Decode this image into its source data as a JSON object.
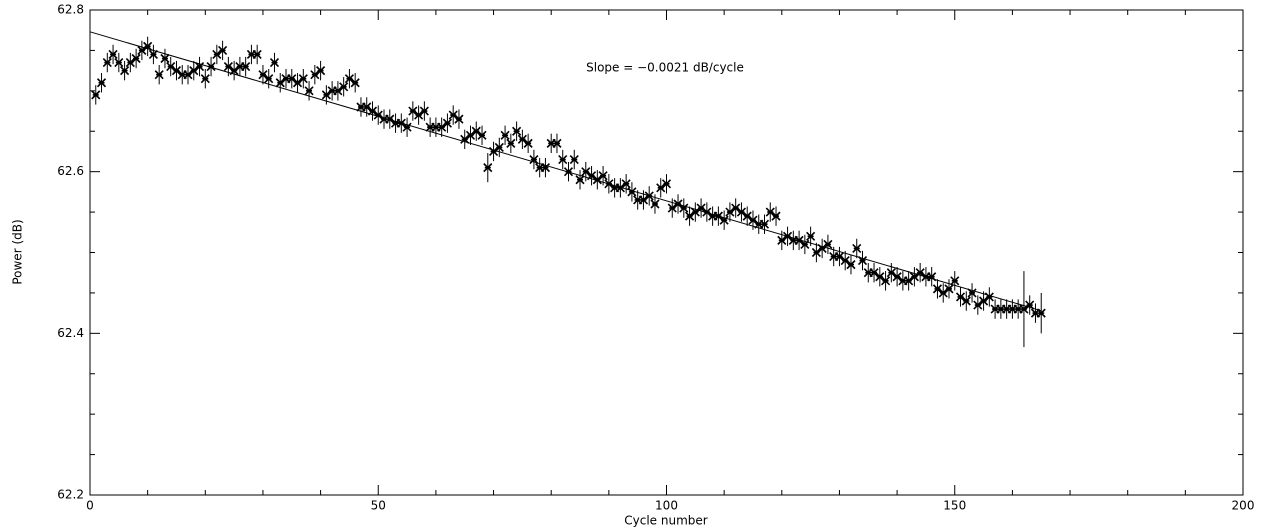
{
  "chart_data": {
    "type": "scatter",
    "xlabel": "Cycle number",
    "ylabel": "Power   (dB)",
    "annotation": "Slope = −0.0021 dB/cycle",
    "color": "#000000",
    "xlim": [
      0,
      200
    ],
    "xticks": [
      0,
      50,
      100,
      150,
      200
    ],
    "xminorticks": [
      10,
      20,
      30,
      40,
      60,
      70,
      80,
      90,
      110,
      120,
      130,
      140,
      160,
      170,
      180,
      190
    ],
    "ylim": [
      62.2,
      62.8
    ],
    "yticks": [
      62.2,
      62.4,
      62.6,
      62.8
    ],
    "yminorticks": [
      62.25,
      62.3,
      62.35,
      62.45,
      62.5,
      62.55,
      62.65,
      62.7,
      62.75
    ],
    "x": [
      1,
      2,
      3,
      4,
      5,
      6,
      7,
      8,
      9,
      10,
      11,
      12,
      13,
      14,
      15,
      16,
      17,
      18,
      19,
      20,
      21,
      22,
      23,
      24,
      25,
      26,
      27,
      28,
      29,
      30,
      31,
      32,
      33,
      34,
      35,
      36,
      37,
      38,
      39,
      40,
      41,
      42,
      43,
      44,
      45,
      46,
      47,
      48,
      49,
      50,
      51,
      52,
      53,
      54,
      55,
      56,
      57,
      58,
      59,
      60,
      61,
      62,
      63,
      64,
      65,
      66,
      67,
      68,
      69,
      70,
      71,
      72,
      73,
      74,
      75,
      76,
      77,
      78,
      79,
      80,
      81,
      82,
      83,
      84,
      85,
      86,
      87,
      88,
      89,
      90,
      91,
      92,
      93,
      94,
      95,
      96,
      97,
      98,
      99,
      100,
      101,
      102,
      103,
      104,
      105,
      106,
      107,
      108,
      109,
      110,
      111,
      112,
      113,
      114,
      115,
      116,
      117,
      118,
      119,
      120,
      121,
      122,
      123,
      124,
      125,
      126,
      127,
      128,
      129,
      130,
      131,
      132,
      133,
      134,
      135,
      136,
      137,
      138,
      139,
      140,
      141,
      142,
      143,
      144,
      145,
      146,
      147,
      148,
      149,
      150,
      151,
      152,
      153,
      154,
      155,
      156,
      157,
      158,
      159,
      160,
      161,
      162,
      163,
      164,
      165
    ],
    "values": [
      62.695,
      62.71,
      62.735,
      62.745,
      62.735,
      62.725,
      62.735,
      62.74,
      62.75,
      62.755,
      62.745,
      62.72,
      62.74,
      62.73,
      62.725,
      62.72,
      62.72,
      62.725,
      62.73,
      62.715,
      62.73,
      62.745,
      62.75,
      62.73,
      62.725,
      62.73,
      62.73,
      62.745,
      62.745,
      62.72,
      62.715,
      62.735,
      62.71,
      62.715,
      62.715,
      62.71,
      62.715,
      62.7,
      62.72,
      62.725,
      62.695,
      62.7,
      62.7,
      62.705,
      62.715,
      62.71,
      62.68,
      62.68,
      62.675,
      62.67,
      62.665,
      62.665,
      62.66,
      62.66,
      62.655,
      62.675,
      62.67,
      62.675,
      62.655,
      62.655,
      62.655,
      62.66,
      62.67,
      62.665,
      62.64,
      62.645,
      62.65,
      62.645,
      62.605,
      62.625,
      62.63,
      62.645,
      62.635,
      62.65,
      62.64,
      62.635,
      62.615,
      62.605,
      62.605,
      62.635,
      62.635,
      62.615,
      62.6,
      62.615,
      62.59,
      62.6,
      62.595,
      62.59,
      62.595,
      62.585,
      62.58,
      62.58,
      62.585,
      62.575,
      62.565,
      62.565,
      62.57,
      62.56,
      62.58,
      62.585,
      62.555,
      62.56,
      62.555,
      62.545,
      62.55,
      62.555,
      62.55,
      62.545,
      62.545,
      62.54,
      62.55,
      62.555,
      62.55,
      62.545,
      62.54,
      62.535,
      62.535,
      62.55,
      62.545,
      62.515,
      62.52,
      62.515,
      62.515,
      62.51,
      62.52,
      62.5,
      62.505,
      62.51,
      62.495,
      62.495,
      62.49,
      62.485,
      62.505,
      62.49,
      62.475,
      62.475,
      62.47,
      62.465,
      62.475,
      62.47,
      62.465,
      62.465,
      62.47,
      62.475,
      62.47,
      62.47,
      62.455,
      62.45,
      62.455,
      62.465,
      62.445,
      62.44,
      62.45,
      62.435,
      62.44,
      62.445,
      62.43,
      62.43,
      62.43,
      62.43,
      62.43,
      62.43,
      62.435,
      62.425,
      62.425
    ],
    "errors": [
      0.012,
      0.012,
      0.012,
      0.012,
      0.012,
      0.012,
      0.012,
      0.012,
      0.012,
      0.012,
      0.012,
      0.012,
      0.012,
      0.012,
      0.012,
      0.012,
      0.012,
      0.012,
      0.012,
      0.012,
      0.012,
      0.012,
      0.012,
      0.012,
      0.012,
      0.012,
      0.012,
      0.012,
      0.012,
      0.012,
      0.012,
      0.012,
      0.012,
      0.012,
      0.012,
      0.012,
      0.012,
      0.012,
      0.012,
      0.012,
      0.012,
      0.012,
      0.012,
      0.012,
      0.012,
      0.012,
      0.012,
      0.012,
      0.012,
      0.012,
      0.012,
      0.012,
      0.012,
      0.012,
      0.012,
      0.012,
      0.012,
      0.012,
      0.012,
      0.012,
      0.012,
      0.012,
      0.012,
      0.012,
      0.012,
      0.012,
      0.012,
      0.012,
      0.018,
      0.012,
      0.012,
      0.012,
      0.012,
      0.012,
      0.012,
      0.012,
      0.012,
      0.012,
      0.012,
      0.012,
      0.012,
      0.012,
      0.012,
      0.012,
      0.012,
      0.012,
      0.012,
      0.012,
      0.012,
      0.012,
      0.012,
      0.012,
      0.012,
      0.012,
      0.012,
      0.012,
      0.012,
      0.012,
      0.012,
      0.012,
      0.012,
      0.012,
      0.012,
      0.012,
      0.012,
      0.012,
      0.012,
      0.012,
      0.012,
      0.012,
      0.012,
      0.012,
      0.012,
      0.012,
      0.012,
      0.012,
      0.012,
      0.012,
      0.012,
      0.012,
      0.012,
      0.012,
      0.012,
      0.012,
      0.012,
      0.012,
      0.012,
      0.012,
      0.012,
      0.012,
      0.012,
      0.012,
      0.012,
      0.012,
      0.012,
      0.012,
      0.012,
      0.012,
      0.012,
      0.012,
      0.012,
      0.012,
      0.012,
      0.012,
      0.012,
      0.012,
      0.012,
      0.012,
      0.012,
      0.012,
      0.012,
      0.012,
      0.012,
      0.012,
      0.012,
      0.012,
      0.012,
      0.012,
      0.012,
      0.012,
      0.012,
      0.047,
      0.012,
      0.012,
      0.025
    ],
    "fit": {
      "x": [
        0,
        165
      ],
      "values": [
        62.773,
        62.428
      ]
    }
  }
}
